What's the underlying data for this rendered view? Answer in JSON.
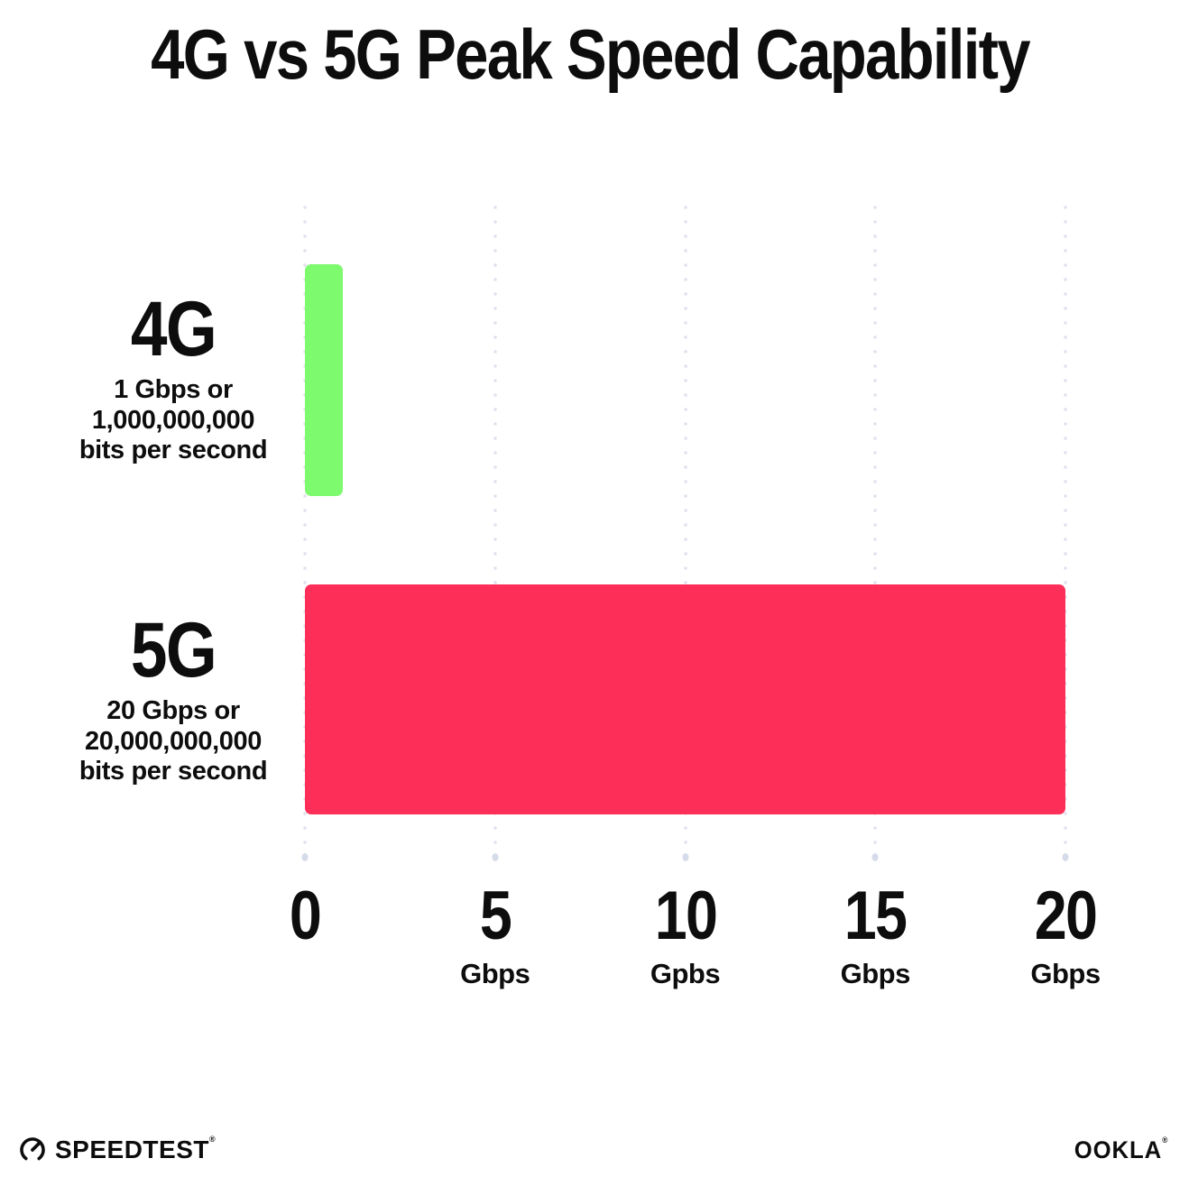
{
  "title": "4G vs 5G Peak Speed Capability",
  "chart_data": {
    "type": "bar",
    "orientation": "horizontal",
    "title": "4G vs 5G Peak Speed Capability",
    "categories": [
      "4G",
      "5G"
    ],
    "values": [
      1,
      20
    ],
    "value_unit": "Gbps",
    "series": [
      {
        "name": "4G",
        "value": 1,
        "color": "#7dfa6e",
        "sublabel_lines": [
          "1 Gbps or",
          "1,000,000,000",
          "bits per second"
        ]
      },
      {
        "name": "5G",
        "value": 20,
        "color": "#fd2e57",
        "sublabel_lines": [
          "20 Gbps or",
          "20,000,000,000",
          "bits per second"
        ]
      }
    ],
    "xlim": [
      0,
      20
    ],
    "x_ticks": [
      {
        "value": 0,
        "label": "0",
        "unit": ""
      },
      {
        "value": 5,
        "label": "5",
        "unit": "Gbps"
      },
      {
        "value": 10,
        "label": "10",
        "unit": "Gpbs"
      },
      {
        "value": 15,
        "label": "15",
        "unit": "Gbps"
      },
      {
        "value": 20,
        "label": "20",
        "unit": "Gbps"
      }
    ],
    "grid": {
      "style": "dotted",
      "orientation": "vertical",
      "color": "#e0e1ee"
    },
    "legend": "none"
  },
  "footer": {
    "speedtest": {
      "label": "SPEEDTEST",
      "registered_mark": "®"
    },
    "ookla": {
      "label": "OOKLA",
      "registered_mark": "®"
    }
  },
  "colors": {
    "bar_4g": "#7dfa6e",
    "bar_5g": "#fd2e57",
    "text": "#0d0d0d",
    "gridline": "#e0e1ee",
    "tick_dot": "#d6dbe9",
    "background": "#ffffff"
  }
}
